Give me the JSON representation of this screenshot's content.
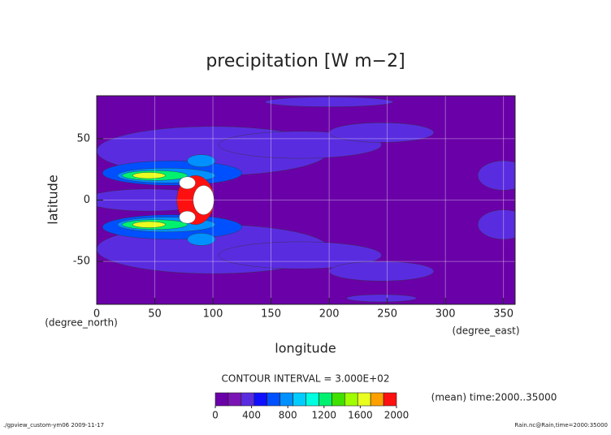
{
  "chart_data": {
    "type": "contour",
    "title": "precipitation [W m−2]",
    "xlabel": "longitude",
    "ylabel": "latitude",
    "xunit": "(degree_east)",
    "yunit": "(degree_north)",
    "xlim": [
      0,
      360
    ],
    "ylim": [
      -85,
      85
    ],
    "xticks": [
      0,
      50,
      100,
      150,
      200,
      250,
      300,
      350
    ],
    "yticks": [
      -50,
      0,
      50
    ],
    "grid": true,
    "background_value": 0,
    "colorbar_range": [
      0,
      2000
    ],
    "colorbar_ticks": [
      0,
      400,
      800,
      1200,
      1600,
      2000
    ],
    "colors": [
      "#6a00a8",
      "#7a14b4",
      "#5a2ce0",
      "#1010ff",
      "#0050ff",
      "#0090ff",
      "#00ccff",
      "#00ffe0",
      "#00f070",
      "#40e000",
      "#a0ff00",
      "#e8ff20",
      "#ffa000",
      "#ff1010"
    ],
    "over_color": "#ffffff",
    "contour_interval": "CONTOUR INTERVAL = 3.000E+02",
    "note": "(mean) time:2000..35000",
    "footer_left": "./gpview_custom-ym06  2009-11-17",
    "footer_right": "Rain.nc@Rain,time=2000:35000",
    "blobs": [
      {
        "x": 100,
        "y": 40,
        "rx": 100,
        "ry": 20,
        "value": 400
      },
      {
        "x": 100,
        "y": -40,
        "rx": 100,
        "ry": 20,
        "value": 400
      },
      {
        "x": 175,
        "y": 45,
        "rx": 70,
        "ry": 11,
        "value": 400
      },
      {
        "x": 175,
        "y": -45,
        "rx": 70,
        "ry": 11,
        "value": 400
      },
      {
        "x": 245,
        "y": 55,
        "rx": 45,
        "ry": 8,
        "value": 400
      },
      {
        "x": 245,
        "y": -58,
        "rx": 45,
        "ry": 8,
        "value": 400
      },
      {
        "x": 200,
        "y": 80,
        "rx": 55,
        "ry": 4,
        "value": 400
      },
      {
        "x": 245,
        "y": -80,
        "rx": 30,
        "ry": 3,
        "value": 400
      },
      {
        "x": 45,
        "y": 0,
        "rx": 55,
        "ry": 9,
        "value": 400
      },
      {
        "x": 350,
        "y": 20,
        "rx": 22,
        "ry": 12,
        "value": 400
      },
      {
        "x": 350,
        "y": -20,
        "rx": 22,
        "ry": 12,
        "value": 400
      },
      {
        "x": 65,
        "y": 22,
        "rx": 60,
        "ry": 10,
        "value": 600
      },
      {
        "x": 65,
        "y": -22,
        "rx": 60,
        "ry": 10,
        "value": 600
      },
      {
        "x": 90,
        "y": 32,
        "rx": 12,
        "ry": 5,
        "value": 750
      },
      {
        "x": 90,
        "y": -32,
        "rx": 12,
        "ry": 5,
        "value": 750
      },
      {
        "x": 60,
        "y": 20,
        "rx": 42,
        "ry": 6,
        "value": 800
      },
      {
        "x": 60,
        "y": -20,
        "rx": 42,
        "ry": 6,
        "value": 800
      },
      {
        "x": 50,
        "y": 20,
        "rx": 28,
        "ry": 4,
        "value": 1200
      },
      {
        "x": 50,
        "y": -20,
        "rx": 28,
        "ry": 4,
        "value": 1200
      },
      {
        "x": 45,
        "y": 20,
        "rx": 14,
        "ry": 2.5,
        "value": 1600
      },
      {
        "x": 45,
        "y": -20,
        "rx": 14,
        "ry": 2.5,
        "value": 1600
      },
      {
        "x": 85,
        "y": 0,
        "rx": 16,
        "ry": 20,
        "value": 1950
      },
      {
        "x": 92,
        "y": 0,
        "rx": 9,
        "ry": 12,
        "value": 2200
      },
      {
        "x": 78,
        "y": 14,
        "rx": 7,
        "ry": 5,
        "value": 2200
      },
      {
        "x": 78,
        "y": -14,
        "rx": 7,
        "ry": 5,
        "value": 2200
      }
    ]
  }
}
